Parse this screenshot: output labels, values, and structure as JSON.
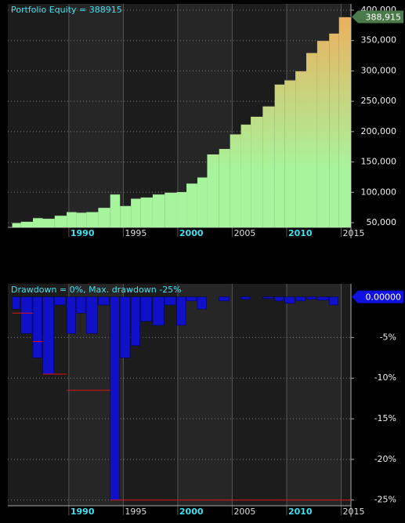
{
  "chart_data": [
    {
      "type": "step-area",
      "title": "Portfolio Equity = 388915",
      "x": [
        1984.8,
        1985.6,
        1986.7,
        1987.6,
        1988.7,
        1989.8,
        1990.7,
        1991.6,
        1992.7,
        1993.8,
        1994.7,
        1995.7,
        1996.6,
        1997.7,
        1998.8,
        1999.9,
        2000.8,
        2001.8,
        2002.7,
        2003.8,
        2004.8,
        2005.8,
        2006.7,
        2007.8,
        2008.9,
        2009.8,
        2010.8,
        2011.8,
        2012.8,
        2013.9,
        2014.8
      ],
      "series": [
        {
          "color": "#a6f59c",
          "color_top": "#f2aa58",
          "values": [
            50000,
            52000,
            58000,
            57000,
            62000,
            68000,
            67000,
            68000,
            75000,
            97000,
            78000,
            90000,
            92000,
            97000,
            100000,
            101000,
            115000,
            125000,
            163000,
            172000,
            196000,
            212000,
            225000,
            242000,
            278000,
            285000,
            300000,
            330000,
            350000,
            362000,
            388915
          ]
        }
      ],
      "current_value": {
        "value": 388915,
        "label": "388,915"
      },
      "tag_color": "#4a7a4a",
      "xlim": [
        1984.4,
        2015.9
      ],
      "xticks": [
        1990,
        1995,
        2000,
        2005,
        2010,
        2015
      ],
      "ylim": [
        42250,
        410300
      ],
      "yticks": [
        {
          "value": 50000,
          "label": "50,000"
        },
        {
          "value": 100000,
          "label": "100,000"
        },
        {
          "value": 150000,
          "label": "150,000"
        },
        {
          "value": 200000,
          "label": "200,000"
        },
        {
          "value": 250000,
          "label": "250,000"
        },
        {
          "value": 300000,
          "label": "300,000"
        },
        {
          "value": 350000,
          "label": "350,000"
        },
        {
          "value": 400000,
          "label": "400,000"
        }
      ],
      "grid": true
    },
    {
      "type": "drawdown",
      "title": "Drawdown = 0%, Max. drawdown -25%",
      "x": [
        1984.8,
        1985.6,
        1986.7,
        1987.6,
        1988.7,
        1989.8,
        1990.7,
        1991.6,
        1992.7,
        1993.8,
        1994.7,
        1995.7,
        1996.6,
        1997.7,
        1998.8,
        1999.9,
        2000.8,
        2001.8,
        2002.7,
        2003.8,
        2004.8,
        2005.8,
        2006.7,
        2007.8,
        2008.9,
        2009.8,
        2010.8,
        2011.8,
        2012.8,
        2013.9,
        2014.8
      ],
      "series": [
        {
          "color": "#1010c8",
          "values": [
            -1.5,
            -4.5,
            -7.5,
            -9.5,
            -1,
            -4.5,
            -2,
            -4.5,
            -1,
            -25,
            -7.5,
            -6,
            -3,
            -3.5,
            -1,
            -3.5,
            -0.5,
            -1.5,
            0,
            -0.5,
            0,
            -0.3,
            0,
            -0.2,
            -0.5,
            -0.8,
            -0.5,
            -0.3,
            -0.4,
            -1,
            0
          ]
        },
        {
          "color": "#e01010",
          "values": [
            -2,
            -2,
            -5.5,
            -9.5,
            -9.5,
            -11.5,
            -11.5,
            -11.5,
            -11.5,
            -25,
            -25,
            -25,
            -25,
            -25,
            -25,
            -25,
            -25,
            -25,
            -25,
            -25,
            -25,
            -25,
            -25,
            -25,
            -25,
            -25,
            -25,
            -25,
            -25,
            -25,
            -25
          ]
        }
      ],
      "current_value": {
        "value": 0,
        "label": "0.00000"
      },
      "tag_color": "#1010e0",
      "xlim": [
        1984.4,
        2015.9
      ],
      "xticks": [
        1990,
        1995,
        2000,
        2005,
        2010,
        2015
      ],
      "ylim": [
        -25.7,
        1.6
      ],
      "yticks": [
        {
          "value": -25,
          "label": "-25%"
        },
        {
          "value": -20,
          "label": "-20%"
        },
        {
          "value": -15,
          "label": "-15%"
        },
        {
          "value": -10,
          "label": "-10%"
        },
        {
          "value": -5,
          "label": "-5%"
        }
      ],
      "grid": true
    }
  ]
}
